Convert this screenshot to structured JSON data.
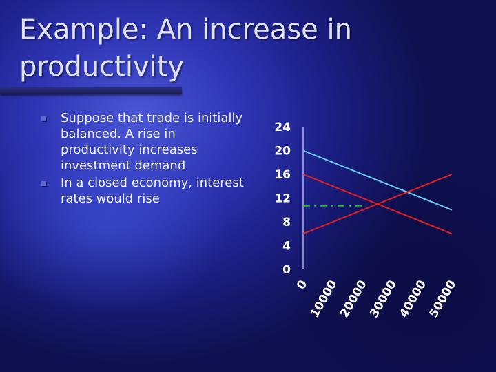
{
  "slide": {
    "title": "Example: An increase in productivity",
    "bullets": [
      "Suppose that trade is initially balanced.  A rise in productivity increases investment demand",
      "In a closed economy, interest rates would rise"
    ]
  },
  "colors": {
    "cyan_line": "#66ccf0",
    "red_line": "#e02020",
    "green_line": "#22bb22",
    "axis": "#ffffff",
    "bullet": "#5d66c8"
  },
  "chart_data": {
    "type": "line",
    "x": [
      0,
      50000
    ],
    "xticks": [
      "0",
      "10000",
      "20000",
      "30000",
      "40000",
      "50000"
    ],
    "yticks": [
      "0",
      "4",
      "8",
      "12",
      "16",
      "20",
      "24"
    ],
    "xlim": [
      0,
      50000
    ],
    "ylim": [
      0,
      24
    ],
    "grid": false,
    "legend": "none",
    "series": [
      {
        "color": "#66ccf0",
        "dash": "none",
        "points": [
          [
            0,
            20
          ],
          [
            50000,
            10
          ]
        ]
      },
      {
        "color": "#e02020",
        "dash": "none",
        "points": [
          [
            0,
            16
          ],
          [
            50000,
            6
          ]
        ]
      },
      {
        "color": "#e02020",
        "dash": "none",
        "points": [
          [
            0,
            6
          ],
          [
            50000,
            16
          ]
        ]
      },
      {
        "color": "#22bb22",
        "dash": "10,6,3,6",
        "points": [
          [
            0,
            10.7
          ],
          [
            20000,
            10.7
          ]
        ]
      }
    ]
  }
}
